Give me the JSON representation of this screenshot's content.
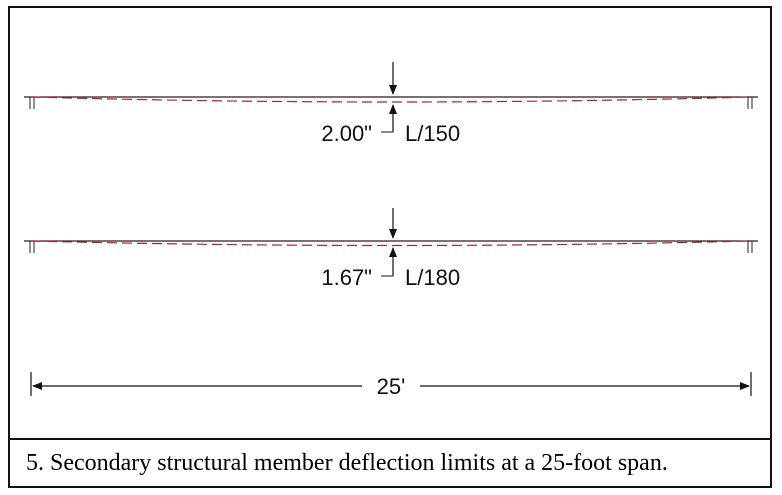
{
  "beam_1": {
    "deflection": "2.00\"",
    "ratio": "L/150"
  },
  "beam_2": {
    "deflection": "1.67\"",
    "ratio": "L/180"
  },
  "span_dimension": "25'",
  "caption": "5. Secondary structural member deflection limits at a 25-foot span.",
  "colors": {
    "beam": "#222222",
    "deflected_shape": "#b22222",
    "frame": "#111111"
  }
}
